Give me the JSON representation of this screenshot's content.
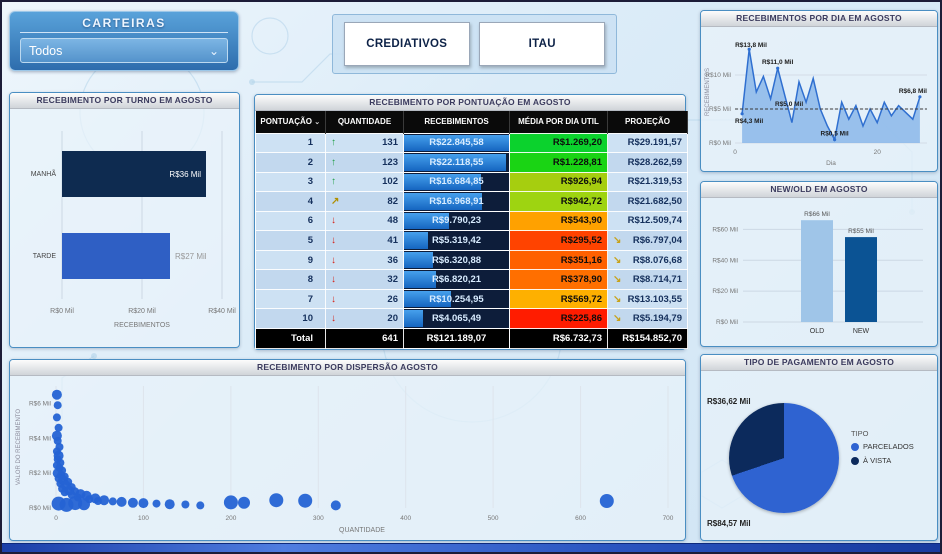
{
  "header": {
    "carteiras": {
      "title": "CARTEIRAS",
      "selected": "Todos"
    },
    "buttons": [
      {
        "label": "CREDIATIVOS"
      },
      {
        "label": "ITAU"
      }
    ]
  },
  "chart_data": [
    {
      "id": "daily",
      "type": "area",
      "title": "RECEBIMENTOS POR DIA EM AGOSTO",
      "xlabel": "Dia",
      "ylabel": "RECEBIMENTOS",
      "xlim": [
        0,
        27
      ],
      "ylim": [
        0,
        15
      ],
      "x_ticks": [
        {
          "v": 0,
          "label": "0"
        },
        {
          "v": 20,
          "label": "20"
        }
      ],
      "y_ticks": [
        {
          "v": 0,
          "label": "R$0 Mil"
        },
        {
          "v": 5,
          "label": "R$5 Mil"
        },
        {
          "v": 10,
          "label": "R$10 Mil"
        }
      ],
      "days": [
        1,
        2,
        3,
        4,
        5,
        6,
        7,
        8,
        9,
        10,
        11,
        12,
        13,
        14,
        15,
        16,
        17,
        18,
        19,
        20,
        21,
        22,
        23,
        24,
        25,
        26
      ],
      "values": [
        4.3,
        13.8,
        7.5,
        9.8,
        6.5,
        11.0,
        7.0,
        3.0,
        9.0,
        6.0,
        9.5,
        5.0,
        2.5,
        0.5,
        6.0,
        3.5,
        5.5,
        2.5,
        5.0,
        3.0,
        6.0,
        4.0,
        5.5,
        4.5,
        3.5,
        6.8
      ],
      "point_labels": [
        {
          "index": 0,
          "text": "R$4,3 Mil",
          "pos": "below"
        },
        {
          "index": 1,
          "text": "R$13,8 Mil",
          "pos": "above"
        },
        {
          "index": 5,
          "text": "R$11,0 Mil",
          "pos": "above"
        },
        {
          "index": 13,
          "text": "R$0,5 Mil",
          "pos": "above"
        },
        {
          "index": 25,
          "text": "R$6,8 Mil",
          "pos": "above"
        }
      ],
      "avg_line": {
        "v": 5.0,
        "label": "R$5,0 Mil"
      },
      "line_color": "#2f6fd0",
      "fill_color": "#85b4e8"
    },
    {
      "id": "turno",
      "type": "bar",
      "orientation": "horizontal",
      "title": "RECEBIMENTO POR TURNO EM AGOSTO",
      "xlabel": "RECEBIMENTOS",
      "xlim": [
        0,
        40
      ],
      "x_ticks": [
        {
          "v": 0,
          "label": "R$0 Mil"
        },
        {
          "v": 20,
          "label": "R$20 Mil"
        },
        {
          "v": 40,
          "label": "R$40 Mil"
        }
      ],
      "categories": [
        "MANHÃ",
        "TARDE"
      ],
      "values": [
        36,
        27
      ],
      "value_labels": [
        "R$36 Mil",
        "R$27 Mil"
      ],
      "bar_colors": [
        "#0e2b50",
        "#2f5fc4"
      ]
    },
    {
      "id": "pontuacao",
      "type": "table",
      "title": "RECEBIMENTO POR PONTUAÇÃO EM AGOSTO",
      "columns": [
        "PONTUAÇÃO",
        "QUANTIDADE",
        "RECEBIMENTOS",
        "MÉDIA POR DIA UTIL",
        "PROJEÇÃO"
      ],
      "rows": [
        {
          "pontuacao": "1",
          "trend": "up",
          "quantidade": "131",
          "recebimentos": "R$22.845,58",
          "media": "R$1.269,20",
          "media_color": "#0bd22d",
          "proj_trend": "",
          "projecao": "R$29.191,57"
        },
        {
          "pontuacao": "2",
          "trend": "up",
          "quantidade": "123",
          "recebimentos": "R$22.118,55",
          "media": "R$1.228,81",
          "media_color": "#1ad414",
          "proj_trend": "",
          "projecao": "R$28.262,59"
        },
        {
          "pontuacao": "3",
          "trend": "up",
          "quantidade": "102",
          "recebimentos": "R$16.684,85",
          "media": "R$926,94",
          "media_color": "#a6ce0f",
          "proj_trend": "",
          "projecao": "R$21.319,53"
        },
        {
          "pontuacao": "4",
          "trend": "up-right",
          "quantidade": "82",
          "recebimentos": "R$16.968,91",
          "media": "R$942,72",
          "media_color": "#9ed411",
          "proj_trend": "",
          "projecao": "R$21.682,50"
        },
        {
          "pontuacao": "6",
          "trend": "down",
          "quantidade": "48",
          "recebimentos": "R$9.790,23",
          "media": "R$543,90",
          "media_color": "#ffa100",
          "proj_trend": "",
          "projecao": "R$12.509,74"
        },
        {
          "pontuacao": "5",
          "trend": "down",
          "quantidade": "41",
          "recebimentos": "R$5.319,42",
          "media": "R$295,52",
          "media_color": "#ff4300",
          "proj_trend": "down-right",
          "projecao": "R$6.797,04"
        },
        {
          "pontuacao": "9",
          "trend": "down",
          "quantidade": "36",
          "recebimentos": "R$6.320,88",
          "media": "R$351,16",
          "media_color": "#ff6000",
          "proj_trend": "down-right",
          "projecao": "R$8.076,68"
        },
        {
          "pontuacao": "8",
          "trend": "down",
          "quantidade": "32",
          "recebimentos": "R$6.820,21",
          "media": "R$378,90",
          "media_color": "#ff6f00",
          "proj_trend": "down-right",
          "projecao": "R$8.714,71"
        },
        {
          "pontuacao": "7",
          "trend": "down",
          "quantidade": "26",
          "recebimentos": "R$10.254,95",
          "media": "R$569,72",
          "media_color": "#feb000",
          "proj_trend": "down-right",
          "projecao": "R$13.103,55"
        },
        {
          "pontuacao": "10",
          "trend": "down",
          "quantidade": "20",
          "recebimentos": "R$4.065,49",
          "media": "R$225,86",
          "media_color": "#ff1c00",
          "proj_trend": "down-right",
          "projecao": "R$5.194,79"
        }
      ],
      "total": {
        "label": "Total",
        "quantidade": "641",
        "recebimentos": "R$121.189,07",
        "media": "R$6.732,73",
        "projecao": "R$154.852,70"
      }
    },
    {
      "id": "newold",
      "type": "bar",
      "orientation": "vertical",
      "title": "NEW/OLD EM AGOSTO",
      "ylim": [
        0,
        70
      ],
      "y_ticks": [
        {
          "v": 0,
          "label": "R$0 Mil"
        },
        {
          "v": 20,
          "label": "R$20 Mil"
        },
        {
          "v": 40,
          "label": "R$40 Mil"
        },
        {
          "v": 60,
          "label": "R$60 Mil"
        }
      ],
      "categories": [
        "OLD",
        "NEW"
      ],
      "values": [
        66,
        55
      ],
      "value_labels": [
        "R$66 Mil",
        "R$55 Mil"
      ],
      "bar_colors": [
        "#9fc5e8",
        "#0b5394"
      ]
    },
    {
      "id": "dispersao",
      "type": "scatter",
      "title": "RECEBIMENTO POR DISPERSÃO AGOSTO",
      "xlabel": "QUANTIDADE",
      "ylabel": "VALOR DO RECEBIMENTO",
      "xlim": [
        0,
        700
      ],
      "ylim": [
        0,
        7
      ],
      "x_ticks": [
        {
          "v": 0,
          "label": "0"
        },
        {
          "v": 100,
          "label": "100"
        },
        {
          "v": 200,
          "label": "200"
        },
        {
          "v": 300,
          "label": "300"
        },
        {
          "v": 400,
          "label": "400"
        },
        {
          "v": 500,
          "label": "500"
        },
        {
          "v": 600,
          "label": "600"
        },
        {
          "v": 700,
          "label": "700"
        }
      ],
      "y_ticks": [
        {
          "v": 0,
          "label": "R$0 Mil"
        },
        {
          "v": 2,
          "label": "R$2 Mil"
        },
        {
          "v": 4,
          "label": "R$4 Mil"
        },
        {
          "v": 6,
          "label": "R$6 Mil"
        }
      ],
      "point_color": "#2563d4",
      "points": [
        [
          1,
          6.5,
          5
        ],
        [
          2,
          5.9,
          4
        ],
        [
          1,
          5.2,
          4
        ],
        [
          3,
          4.6,
          4
        ],
        [
          1,
          4.15,
          5
        ],
        [
          2,
          3.85,
          4
        ],
        [
          4,
          3.5,
          4
        ],
        [
          1,
          3.25,
          4
        ],
        [
          3,
          3.0,
          5
        ],
        [
          2,
          2.8,
          4
        ],
        [
          5,
          2.6,
          4
        ],
        [
          1,
          2.45,
          4
        ],
        [
          4,
          2.3,
          4
        ],
        [
          7,
          2.15,
          4
        ],
        [
          2,
          2.0,
          5
        ],
        [
          6,
          1.9,
          4
        ],
        [
          10,
          1.8,
          4
        ],
        [
          3,
          1.7,
          4
        ],
        [
          8,
          1.6,
          5
        ],
        [
          14,
          1.5,
          4
        ],
        [
          5,
          1.4,
          4
        ],
        [
          11,
          1.3,
          5
        ],
        [
          18,
          1.2,
          4
        ],
        [
          7,
          1.1,
          4
        ],
        [
          15,
          1.0,
          5
        ],
        [
          22,
          0.95,
          4
        ],
        [
          10,
          0.9,
          4
        ],
        [
          28,
          0.8,
          5
        ],
        [
          18,
          0.75,
          4
        ],
        [
          35,
          0.7,
          5
        ],
        [
          25,
          0.6,
          4
        ],
        [
          45,
          0.55,
          5
        ],
        [
          38,
          0.5,
          4
        ],
        [
          55,
          0.45,
          5
        ],
        [
          48,
          0.4,
          4
        ],
        [
          65,
          0.38,
          4
        ],
        [
          75,
          0.35,
          5
        ],
        [
          88,
          0.3,
          5
        ],
        [
          100,
          0.28,
          5
        ],
        [
          115,
          0.25,
          4
        ],
        [
          130,
          0.22,
          5
        ],
        [
          148,
          0.2,
          4
        ],
        [
          165,
          0.15,
          4
        ],
        [
          3,
          0.25,
          7
        ],
        [
          12,
          0.18,
          7
        ],
        [
          22,
          0.28,
          7
        ],
        [
          32,
          0.22,
          6
        ],
        [
          200,
          0.32,
          7
        ],
        [
          215,
          0.3,
          6
        ],
        [
          252,
          0.45,
          7
        ],
        [
          285,
          0.42,
          7
        ],
        [
          320,
          0.15,
          5
        ],
        [
          630,
          0.4,
          7
        ]
      ]
    },
    {
      "id": "pagamento",
      "type": "pie",
      "title": "TIPO DE PAGAMENTO EM AGOSTO",
      "legend_title": "TIPO",
      "slices": [
        {
          "label": "PARCELADOS",
          "value": 84.57,
          "value_label": "R$84,57 Mil",
          "color": "#2f63d1"
        },
        {
          "label": "À VISTA",
          "value": 36.62,
          "value_label": "R$36,62 Mil",
          "color": "#0c2a5c"
        }
      ]
    }
  ]
}
